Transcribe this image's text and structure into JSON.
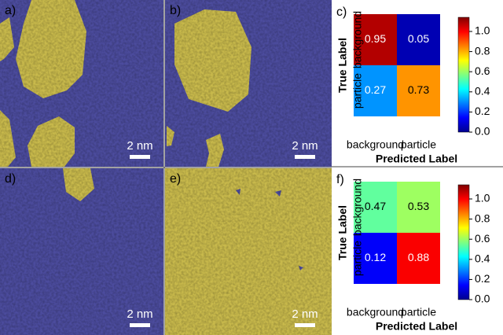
{
  "panels": [
    {
      "label": "a)",
      "scale_bar": "2 nm"
    },
    {
      "label": "b)",
      "scale_bar": "2 nm"
    },
    {
      "label": "d)",
      "scale_bar": "2 nm"
    },
    {
      "label": "e)",
      "scale_bar": "2 nm"
    }
  ],
  "chart_data": [
    {
      "type": "heatmap",
      "panel_label": "c)",
      "x_categories": [
        "background",
        "particle"
      ],
      "y_categories": [
        "background",
        "particle"
      ],
      "xlabel": "Predicted Label",
      "ylabel": "True Label",
      "values": [
        [
          0.95,
          0.05
        ],
        [
          0.27,
          0.73
        ]
      ],
      "colormap": "jet",
      "clim": [
        0,
        1
      ],
      "cticks": [
        {
          "value": 0,
          "label": "0.0"
        },
        0.2,
        0.4,
        0.6,
        0.8,
        {
          "value": 1,
          "label": "1.0"
        }
      ]
    },
    {
      "type": "heatmap",
      "panel_label": "f)",
      "x_categories": [
        "background",
        "particle"
      ],
      "y_categories": [
        "background",
        "particle"
      ],
      "xlabel": "Predicted Label",
      "ylabel": "True Label",
      "values": [
        [
          0.47,
          0.53
        ],
        [
          0.12,
          0.88
        ]
      ],
      "colormap": "jet",
      "clim": [
        0,
        1
      ],
      "cticks": [
        {
          "value": 0,
          "label": "0.0"
        },
        0.2,
        0.4,
        0.6,
        0.8,
        {
          "value": 1,
          "label": "1.0"
        }
      ]
    }
  ]
}
